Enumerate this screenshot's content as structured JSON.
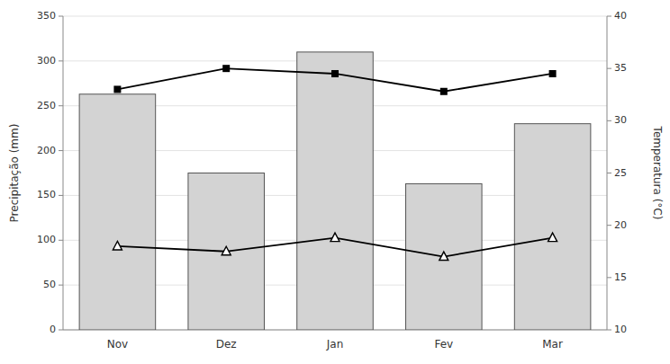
{
  "chart_data": {
    "type": "bar",
    "categories": [
      "Nov",
      "Dez",
      "Jan",
      "Fev",
      "Mar"
    ],
    "series": [
      {
        "type": "bar",
        "color": "#d3d3d3",
        "values": [
          263,
          175,
          310,
          163,
          230
        ]
      },
      {
        "type": "line",
        "axis": "y2",
        "color": "#000000",
        "marker": "square",
        "values": [
          33.0,
          35.0,
          34.5,
          32.8,
          34.5
        ]
      },
      {
        "type": "line",
        "axis": "y2",
        "color": "#000000",
        "marker": "triangle",
        "values": [
          18.0,
          17.5,
          18.8,
          17.0,
          18.8
        ]
      }
    ],
    "ylabel": "Precipitação (mm)",
    "y2label": "Temperatura (°C)",
    "ylim": [
      0,
      350
    ],
    "yticks": [
      0,
      50,
      100,
      150,
      200,
      250,
      300,
      350
    ],
    "y2lim": [
      10,
      40
    ],
    "y2ticks": [
      10,
      15,
      20,
      25,
      30,
      35,
      40
    ],
    "grid": true
  }
}
